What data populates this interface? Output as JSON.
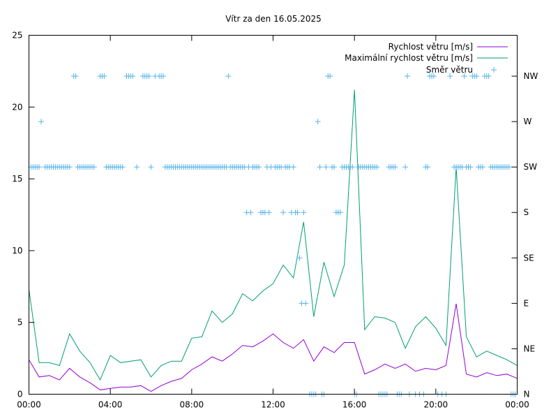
{
  "chart_data": {
    "type": "line",
    "title": "Vítr za den 16.05.2025",
    "x_tick_labels": [
      "00:00",
      "04:00",
      "08:00",
      "12:00",
      "16:00",
      "20:00",
      "00:00"
    ],
    "x_range_hours": [
      0,
      24
    ],
    "y_left_range": [
      0,
      25
    ],
    "y_left_ticks": [
      "0",
      "5",
      "10",
      "15",
      "20",
      "25"
    ],
    "y_right_ticks": [
      "N",
      "NE",
      "E",
      "SE",
      "S",
      "SW",
      "W",
      "NW"
    ],
    "grid": false,
    "legend_position": "top-right",
    "colors": {
      "speed": "#9400d3",
      "max_speed": "#009e73",
      "direction": "#56b4e9"
    },
    "series": [
      {
        "name": "Rychlost větru [m/s]",
        "kind": "line",
        "axis": "left",
        "x_hours": [
          0,
          0.5,
          1,
          1.5,
          2,
          2.5,
          3,
          3.5,
          4,
          4.5,
          5,
          5.5,
          6,
          6.5,
          7,
          7.5,
          8,
          8.5,
          9,
          9.5,
          10,
          10.5,
          11,
          11.5,
          12,
          12.5,
          13,
          13.5,
          14,
          14.5,
          15,
          15.5,
          16,
          16.5,
          17,
          17.5,
          18,
          18.5,
          19,
          19.5,
          20,
          20.5,
          21,
          21.5,
          22,
          22.5,
          23,
          23.5,
          24
        ],
        "values": [
          2.4,
          1.2,
          1.3,
          1.0,
          1.8,
          1.2,
          0.8,
          0.3,
          0.4,
          0.5,
          0.5,
          0.6,
          0.2,
          0.6,
          0.9,
          1.1,
          1.7,
          2.1,
          2.6,
          2.3,
          2.8,
          3.4,
          3.3,
          3.7,
          4.2,
          3.6,
          3.2,
          3.8,
          2.3,
          3.3,
          2.9,
          3.6,
          3.6,
          1.4,
          1.7,
          2.1,
          1.8,
          2.1,
          1.6,
          1.8,
          1.7,
          2.0,
          6.3,
          1.4,
          1.2,
          1.5,
          1.3,
          1.4,
          1.1
        ]
      },
      {
        "name": "Maximální rychlost větru [m/s]",
        "kind": "line",
        "axis": "left",
        "x_hours": [
          0,
          0.5,
          1,
          1.5,
          2,
          2.5,
          3,
          3.5,
          4,
          4.5,
          5,
          5.5,
          6,
          6.5,
          7,
          7.5,
          8,
          8.5,
          9,
          9.5,
          10,
          10.5,
          11,
          11.5,
          12,
          12.5,
          13,
          13.5,
          14,
          14.5,
          15,
          15.5,
          16,
          16.5,
          17,
          17.5,
          18,
          18.5,
          19,
          19.5,
          20,
          20.5,
          21,
          21.5,
          22,
          22.5,
          23,
          23.5,
          24
        ],
        "values": [
          7.3,
          2.2,
          2.2,
          2.0,
          4.2,
          3.0,
          2.2,
          1.0,
          2.7,
          2.2,
          2.3,
          2.4,
          1.2,
          2.0,
          2.3,
          2.3,
          3.9,
          4.0,
          5.8,
          5.0,
          5.6,
          7.0,
          6.5,
          7.2,
          7.7,
          9.0,
          8.1,
          12.0,
          5.4,
          9.2,
          6.8,
          9.0,
          21.2,
          4.5,
          5.4,
          5.3,
          5.0,
          3.2,
          4.7,
          5.4,
          4.6,
          3.4,
          15.8,
          4.0,
          2.6,
          3.0,
          2.7,
          2.4,
          2.0
        ]
      },
      {
        "name": "Směr větru",
        "kind": "points",
        "axis": "right",
        "points_hours": [
          [
            0.1,
            5
          ],
          [
            0.2,
            5
          ],
          [
            0.3,
            5
          ],
          [
            0.4,
            5
          ],
          [
            0.5,
            5
          ],
          [
            0.6,
            6
          ],
          [
            0.8,
            5
          ],
          [
            0.9,
            5
          ],
          [
            1.0,
            5
          ],
          [
            1.1,
            5
          ],
          [
            1.2,
            5
          ],
          [
            1.3,
            5
          ],
          [
            1.4,
            5
          ],
          [
            1.5,
            5
          ],
          [
            1.6,
            5
          ],
          [
            1.7,
            5
          ],
          [
            1.8,
            5
          ],
          [
            1.9,
            5
          ],
          [
            2.0,
            5
          ],
          [
            2.2,
            7
          ],
          [
            2.3,
            7
          ],
          [
            2.4,
            5
          ],
          [
            2.5,
            5
          ],
          [
            2.6,
            5
          ],
          [
            2.7,
            5
          ],
          [
            2.8,
            5
          ],
          [
            2.9,
            5
          ],
          [
            3.0,
            5
          ],
          [
            3.1,
            5
          ],
          [
            3.2,
            5
          ],
          [
            3.5,
            7
          ],
          [
            3.6,
            7
          ],
          [
            3.7,
            7
          ],
          [
            3.8,
            5
          ],
          [
            3.9,
            5
          ],
          [
            4.0,
            5
          ],
          [
            4.1,
            5
          ],
          [
            4.2,
            5
          ],
          [
            4.3,
            5
          ],
          [
            4.4,
            5
          ],
          [
            4.5,
            5
          ],
          [
            4.6,
            5
          ],
          [
            4.8,
            7
          ],
          [
            4.9,
            7
          ],
          [
            5.0,
            7
          ],
          [
            5.1,
            7
          ],
          [
            5.3,
            5
          ],
          [
            5.6,
            7
          ],
          [
            5.7,
            7
          ],
          [
            5.8,
            7
          ],
          [
            5.9,
            7
          ],
          [
            6.0,
            5
          ],
          [
            6.2,
            7
          ],
          [
            6.4,
            7
          ],
          [
            6.5,
            7
          ],
          [
            6.6,
            7
          ],
          [
            6.7,
            5
          ],
          [
            6.8,
            5
          ],
          [
            6.9,
            5
          ],
          [
            7.0,
            5
          ],
          [
            7.1,
            5
          ],
          [
            7.2,
            5
          ],
          [
            7.3,
            5
          ],
          [
            7.4,
            5
          ],
          [
            7.5,
            5
          ],
          [
            7.6,
            5
          ],
          [
            7.7,
            5
          ],
          [
            7.8,
            5
          ],
          [
            7.9,
            5
          ],
          [
            8.0,
            5
          ],
          [
            8.1,
            5
          ],
          [
            8.2,
            5
          ],
          [
            8.3,
            5
          ],
          [
            8.4,
            5
          ],
          [
            8.5,
            5
          ],
          [
            8.6,
            5
          ],
          [
            8.7,
            5
          ],
          [
            8.8,
            5
          ],
          [
            8.9,
            5
          ],
          [
            9.0,
            5
          ],
          [
            9.1,
            5
          ],
          [
            9.2,
            5
          ],
          [
            9.3,
            5
          ],
          [
            9.4,
            5
          ],
          [
            9.5,
            5
          ],
          [
            9.6,
            5
          ],
          [
            9.7,
            5
          ],
          [
            9.8,
            7
          ],
          [
            9.9,
            5
          ],
          [
            10.0,
            5
          ],
          [
            10.1,
            5
          ],
          [
            10.2,
            5
          ],
          [
            10.3,
            5
          ],
          [
            10.4,
            5
          ],
          [
            10.5,
            5
          ],
          [
            10.6,
            5
          ],
          [
            10.7,
            4
          ],
          [
            10.8,
            5
          ],
          [
            10.9,
            4
          ],
          [
            11.0,
            5
          ],
          [
            11.1,
            5
          ],
          [
            11.2,
            5
          ],
          [
            11.3,
            5
          ],
          [
            11.4,
            4
          ],
          [
            11.5,
            4
          ],
          [
            11.6,
            4
          ],
          [
            11.7,
            5
          ],
          [
            11.8,
            4
          ],
          [
            11.9,
            5
          ],
          [
            12.1,
            5
          ],
          [
            12.2,
            5
          ],
          [
            12.3,
            5
          ],
          [
            12.4,
            5
          ],
          [
            12.5,
            4
          ],
          [
            12.6,
            5
          ],
          [
            12.7,
            5
          ],
          [
            12.8,
            5
          ],
          [
            12.9,
            4
          ],
          [
            13.0,
            5
          ],
          [
            13.1,
            4
          ],
          [
            13.2,
            4
          ],
          [
            13.3,
            3
          ],
          [
            13.4,
            2
          ],
          [
            13.5,
            4
          ],
          [
            13.6,
            2
          ],
          [
            13.8,
            0
          ],
          [
            13.9,
            0
          ],
          [
            14.0,
            0
          ],
          [
            14.1,
            0
          ],
          [
            14.2,
            6
          ],
          [
            14.3,
            5
          ],
          [
            14.4,
            0
          ],
          [
            14.5,
            0
          ],
          [
            14.6,
            5
          ],
          [
            14.7,
            7
          ],
          [
            14.8,
            7
          ],
          [
            14.9,
            5
          ],
          [
            15.0,
            5
          ],
          [
            15.1,
            4
          ],
          [
            15.2,
            4
          ],
          [
            15.3,
            4
          ],
          [
            15.4,
            5
          ],
          [
            15.5,
            5
          ],
          [
            15.6,
            5
          ],
          [
            15.7,
            5
          ],
          [
            15.8,
            5
          ],
          [
            15.9,
            5
          ],
          [
            16.0,
            0
          ],
          [
            16.1,
            0
          ],
          [
            16.2,
            5
          ],
          [
            16.3,
            5
          ],
          [
            16.4,
            5
          ],
          [
            16.5,
            5
          ],
          [
            16.6,
            5
          ],
          [
            16.7,
            5
          ],
          [
            16.8,
            5
          ],
          [
            16.9,
            5
          ],
          [
            17.0,
            5
          ],
          [
            17.1,
            5
          ],
          [
            17.2,
            0
          ],
          [
            17.3,
            0
          ],
          [
            17.4,
            0
          ],
          [
            17.5,
            0
          ],
          [
            17.6,
            0
          ],
          [
            17.7,
            5
          ],
          [
            17.8,
            5
          ],
          [
            17.9,
            5
          ],
          [
            18.0,
            5
          ],
          [
            18.1,
            0
          ],
          [
            18.2,
            0
          ],
          [
            18.3,
            0
          ],
          [
            18.5,
            5
          ],
          [
            18.6,
            7
          ],
          [
            18.7,
            0
          ],
          [
            19.0,
            0
          ],
          [
            19.2,
            0
          ],
          [
            19.4,
            0
          ],
          [
            19.5,
            5
          ],
          [
            19.6,
            5
          ],
          [
            19.7,
            7
          ],
          [
            19.8,
            7
          ],
          [
            19.9,
            7
          ],
          [
            20.1,
            0
          ],
          [
            20.3,
            0
          ],
          [
            20.5,
            0
          ],
          [
            20.7,
            7
          ],
          [
            20.9,
            5
          ],
          [
            21.0,
            5
          ],
          [
            21.1,
            5
          ],
          [
            21.2,
            5
          ],
          [
            21.3,
            5
          ],
          [
            21.4,
            7
          ],
          [
            21.5,
            5
          ],
          [
            21.6,
            5
          ],
          [
            21.7,
            5
          ],
          [
            21.8,
            7
          ],
          [
            21.9,
            7
          ],
          [
            22.0,
            7
          ],
          [
            22.1,
            5
          ],
          [
            22.2,
            5
          ],
          [
            22.3,
            5
          ],
          [
            22.4,
            7
          ],
          [
            22.5,
            7
          ],
          [
            22.6,
            7
          ],
          [
            22.7,
            5
          ],
          [
            22.8,
            5
          ],
          [
            22.9,
            5
          ],
          [
            23.0,
            5
          ],
          [
            23.1,
            5
          ],
          [
            23.2,
            5
          ],
          [
            23.3,
            5
          ],
          [
            23.4,
            5
          ],
          [
            23.5,
            5
          ],
          [
            23.6,
            5
          ],
          [
            23.7,
            0
          ],
          [
            23.8,
            0
          ],
          [
            23.9,
            0
          ]
        ]
      }
    ]
  }
}
